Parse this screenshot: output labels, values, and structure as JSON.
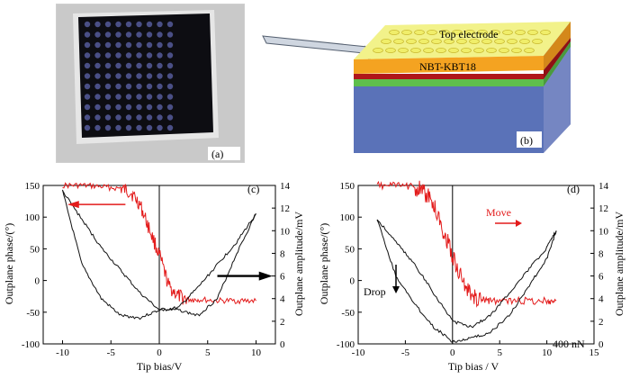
{
  "figure": {
    "panels": {
      "a": {
        "tag": "(a)"
      },
      "b": {
        "tag": "(b)",
        "top_electrode": "Top electrode",
        "layer": "NBT-KBT18"
      },
      "c": {
        "tag": "(c)"
      },
      "d": {
        "tag": "(d)",
        "annot_move": "Move",
        "annot_drop": "Drop",
        "annot_force": "400 nN"
      }
    },
    "colors": {
      "red": "#e31b1b",
      "black": "#111111",
      "yellow": "#f2f28a",
      "orange": "#f4a321",
      "blue": "#5a72b8",
      "green": "#5fbf4c",
      "darkred": "#b0161a"
    }
  },
  "chart_data": [
    {
      "type": "line",
      "panel": "c",
      "xlabel": "Tip bias/V",
      "ylabel": "Outplane phase/(°)",
      "y2label": "Outplane amplitude/mV",
      "xlim": [
        -12,
        12
      ],
      "ylim": [
        -100,
        150
      ],
      "y2lim": [
        0,
        14
      ],
      "xticks": [
        -10,
        -5,
        0,
        5,
        10
      ],
      "yticks": [
        -100,
        -50,
        0,
        50,
        100,
        150
      ],
      "y2ticks": [
        0,
        2,
        4,
        6,
        8,
        10,
        12,
        14
      ],
      "series": [
        {
          "axis": "phase",
          "color": "#e31b1b",
          "x": [
            -10,
            -8,
            -6,
            -4,
            -3,
            -2,
            -1,
            0,
            1,
            2,
            3,
            4,
            6,
            8,
            10
          ],
          "y": [
            150,
            150,
            148,
            145,
            140,
            120,
            80,
            40,
            -10,
            -25,
            -30,
            -30,
            -32,
            -32,
            -32
          ]
        },
        {
          "axis": "amplitude",
          "color": "#111111",
          "x": [
            -10,
            -8,
            -6,
            -4,
            -2,
            0,
            2,
            4,
            6,
            8,
            10
          ],
          "y": [
            13.5,
            11,
            8.5,
            6.5,
            4.5,
            3.0,
            3.2,
            5.0,
            7.0,
            9.0,
            11.5
          ]
        },
        {
          "axis": "amplitude",
          "color": "#111111",
          "x": [
            -10,
            -8,
            -6,
            -4,
            -2,
            0,
            2,
            4,
            6,
            8,
            10
          ],
          "y": [
            13.5,
            7.0,
            4.0,
            2.5,
            2.3,
            3.0,
            3.0,
            2.5,
            4.0,
            8.0,
            11.5
          ]
        }
      ]
    },
    {
      "type": "line",
      "panel": "d",
      "xlabel": "Tip bias / V",
      "ylabel": "Outplane phase/(°)",
      "y2label": "Outplane amplitude/mV",
      "xlim": [
        -10,
        15
      ],
      "ylim": [
        -100,
        150
      ],
      "y2lim": [
        0,
        14
      ],
      "xticks": [
        -10,
        -5,
        0,
        5,
        10,
        15
      ],
      "yticks": [
        -100,
        -50,
        0,
        50,
        100,
        150
      ],
      "y2ticks": [
        0,
        2,
        4,
        6,
        8,
        10,
        12,
        14
      ],
      "series": [
        {
          "axis": "phase",
          "color": "#e31b1b",
          "x": [
            -8,
            -6,
            -4,
            -3,
            -2,
            -1,
            0,
            1,
            2,
            3,
            4,
            6,
            8,
            10,
            11
          ],
          "y": [
            150,
            150,
            148,
            140,
            120,
            80,
            40,
            0,
            -25,
            -30,
            -32,
            -32,
            -32,
            -32,
            -32
          ]
        },
        {
          "axis": "amplitude",
          "color": "#111111",
          "x": [
            -8,
            -6,
            -4,
            -2,
            0,
            2,
            4,
            6,
            8,
            10,
            11
          ],
          "y": [
            11,
            9,
            7,
            4.5,
            2.0,
            1.5,
            2.5,
            4.5,
            6.5,
            8.5,
            10
          ]
        },
        {
          "axis": "amplitude",
          "color": "#111111",
          "x": [
            -8,
            -6,
            -4,
            -2,
            0,
            2,
            4,
            6,
            8,
            10,
            11
          ],
          "y": [
            11,
            6,
            3.5,
            1.5,
            0.2,
            0.5,
            1.0,
            2.5,
            5.0,
            7.5,
            10
          ]
        }
      ]
    }
  ]
}
